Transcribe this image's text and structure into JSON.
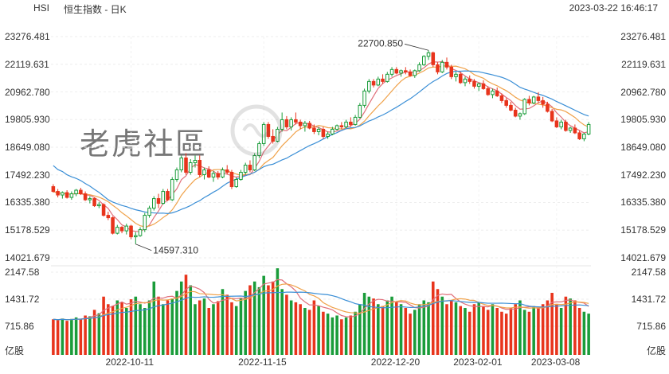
{
  "header": {
    "symbol": "HSI",
    "title": "恒生指数 - 日K",
    "datetime": "2023-03-22 16:46:17"
  },
  "watermark": "老虎社區",
  "colors": {
    "up": "#1a9c3a",
    "down": "#e8341c",
    "ma5": "#e06f7a",
    "ma10": "#f0a24a",
    "ma20": "#3b8fd6"
  },
  "chart_data": {
    "type": "candlestick",
    "price_axis": {
      "ticks": [
        23276.481,
        22119.631,
        20962.78,
        19805.93,
        18649.08,
        17492.23,
        16335.38,
        15178.529,
        14021.679
      ],
      "labels": [
        "23276.481",
        "22119.631",
        "20962.780",
        "19805.930",
        "18649.080",
        "17492.230",
        "16335.380",
        "15178.529",
        "14021.679"
      ]
    },
    "volume_axis": {
      "ticks": [
        2147.58,
        1431.72,
        715.86
      ],
      "labels": [
        "2147.58",
        "1431.72",
        "715.86"
      ],
      "unit": "亿股"
    },
    "x_labels": [
      "2022-10-11",
      "2022-11-15",
      "2022-12-20",
      "2023-02-01",
      "2023-03-08"
    ],
    "annotations": [
      {
        "label": "22700.850"
      },
      {
        "label": "14597.310"
      }
    ],
    "candles": [
      [
        17000,
        17100,
        16750,
        16800
      ],
      [
        16800,
        16900,
        16550,
        16650
      ],
      [
        16650,
        16800,
        16500,
        16750
      ],
      [
        16750,
        16850,
        16500,
        16550
      ],
      [
        16550,
        16800,
        16450,
        16700
      ],
      [
        16700,
        16900,
        16600,
        16850
      ],
      [
        16850,
        16950,
        16650,
        16700
      ],
      [
        16700,
        16800,
        16400,
        16450
      ],
      [
        16450,
        16600,
        16300,
        16500
      ],
      [
        16500,
        16550,
        16150,
        16200
      ],
      [
        16200,
        16350,
        16100,
        16250
      ],
      [
        16250,
        16300,
        15750,
        15800
      ],
      [
        15800,
        15950,
        15600,
        15700
      ],
      [
        15700,
        15750,
        15000,
        15050
      ],
      [
        15050,
        15400,
        15000,
        15300
      ],
      [
        15300,
        15350,
        15050,
        15150
      ],
      [
        15150,
        15450,
        15000,
        15350
      ],
      [
        15350,
        15400,
        14800,
        14900
      ],
      [
        14900,
        15100,
        14597,
        14950
      ],
      [
        14950,
        15300,
        14900,
        15200
      ],
      [
        15200,
        15900,
        15100,
        15800
      ],
      [
        15800,
        16200,
        15700,
        16100
      ],
      [
        16100,
        16600,
        16000,
        16500
      ],
      [
        16500,
        16700,
        16100,
        16300
      ],
      [
        16300,
        16900,
        16250,
        16800
      ],
      [
        16800,
        16900,
        16400,
        16450
      ],
      [
        16450,
        17400,
        16400,
        17300
      ],
      [
        17300,
        17800,
        17200,
        17700
      ],
      [
        17700,
        18300,
        17600,
        18200
      ],
      [
        18200,
        18400,
        17500,
        17600
      ],
      [
        17600,
        18150,
        17500,
        18000
      ],
      [
        18000,
        18300,
        17800,
        18100
      ],
      [
        18100,
        18300,
        17400,
        17500
      ],
      [
        17500,
        17800,
        17300,
        17700
      ],
      [
        17700,
        17850,
        17350,
        17400
      ],
      [
        17400,
        17650,
        17200,
        17550
      ],
      [
        17550,
        17650,
        17300,
        17400
      ],
      [
        17400,
        17800,
        17350,
        17700
      ],
      [
        17700,
        17900,
        17500,
        17600
      ],
      [
        17600,
        17700,
        16900,
        17000
      ],
      [
        17000,
        17400,
        16950,
        17300
      ],
      [
        17300,
        17700,
        17250,
        17600
      ],
      [
        17600,
        18000,
        17500,
        17900
      ],
      [
        17900,
        18100,
        17600,
        17700
      ],
      [
        17700,
        18400,
        17650,
        18300
      ],
      [
        18300,
        18900,
        18200,
        18800
      ],
      [
        18800,
        19700,
        18700,
        19600
      ],
      [
        19600,
        19700,
        19000,
        19100
      ],
      [
        19100,
        19400,
        18800,
        18900
      ],
      [
        18900,
        19500,
        18850,
        19400
      ],
      [
        19400,
        20100,
        19300,
        19800
      ],
      [
        19800,
        19950,
        19400,
        19500
      ],
      [
        19500,
        19900,
        19350,
        19800
      ],
      [
        19800,
        20100,
        19600,
        19700
      ],
      [
        19700,
        19800,
        19400,
        19550
      ],
      [
        19550,
        19750,
        19300,
        19650
      ],
      [
        19650,
        19750,
        19400,
        19450
      ],
      [
        19450,
        19600,
        19200,
        19300
      ],
      [
        19300,
        19500,
        19150,
        19400
      ],
      [
        19400,
        19500,
        19000,
        19100
      ],
      [
        19100,
        19300,
        19000,
        19200
      ],
      [
        19200,
        19500,
        19150,
        19400
      ],
      [
        19400,
        19600,
        19350,
        19550
      ],
      [
        19550,
        19700,
        19400,
        19500
      ],
      [
        19500,
        19800,
        19450,
        19700
      ],
      [
        19700,
        19900,
        19500,
        19600
      ],
      [
        19600,
        20000,
        19550,
        19900
      ],
      [
        19900,
        20500,
        19850,
        20400
      ],
      [
        20400,
        21100,
        20300,
        21000
      ],
      [
        21000,
        21500,
        20900,
        21400
      ],
      [
        21400,
        21500,
        21150,
        21250
      ],
      [
        21250,
        21600,
        21200,
        21500
      ],
      [
        21500,
        21700,
        21300,
        21400
      ],
      [
        21400,
        21800,
        21350,
        21700
      ],
      [
        21700,
        22000,
        21600,
        21900
      ],
      [
        21900,
        22000,
        21700,
        21750
      ],
      [
        21750,
        21900,
        21600,
        21850
      ],
      [
        21850,
        22000,
        21700,
        21800
      ],
      [
        21800,
        21900,
        21600,
        21650
      ],
      [
        21650,
        21900,
        21550,
        21850
      ],
      [
        21850,
        22200,
        21800,
        22100
      ],
      [
        22100,
        22500,
        22050,
        22450
      ],
      [
        22450,
        22701,
        22300,
        22600
      ],
      [
        22600,
        22650,
        22000,
        22100
      ],
      [
        22100,
        22200,
        21700,
        21800
      ],
      [
        21800,
        22300,
        21750,
        22200
      ],
      [
        22200,
        22400,
        21900,
        22000
      ],
      [
        22000,
        22100,
        21500,
        21600
      ],
      [
        21600,
        21800,
        21400,
        21700
      ],
      [
        21700,
        21800,
        21300,
        21350
      ],
      [
        21350,
        21600,
        21200,
        21500
      ],
      [
        21500,
        21650,
        21300,
        21400
      ],
      [
        21400,
        21500,
        21100,
        21200
      ],
      [
        21200,
        21350,
        21000,
        21300
      ],
      [
        21300,
        21450,
        21050,
        21100
      ],
      [
        21100,
        21200,
        20800,
        20850
      ],
      [
        20850,
        21100,
        20700,
        21000
      ],
      [
        21000,
        21150,
        20750,
        20800
      ],
      [
        20800,
        20900,
        20500,
        20600
      ],
      [
        20600,
        20700,
        20300,
        20400
      ],
      [
        20400,
        20550,
        20150,
        20200
      ],
      [
        20200,
        20300,
        19900,
        19950
      ],
      [
        19950,
        20100,
        19800,
        20050
      ],
      [
        20050,
        20700,
        20000,
        20650
      ],
      [
        20650,
        20800,
        20400,
        20500
      ],
      [
        20500,
        20800,
        20450,
        20750
      ],
      [
        20750,
        20950,
        20500,
        20600
      ],
      [
        20600,
        20750,
        20300,
        20450
      ],
      [
        20450,
        20550,
        20100,
        20150
      ],
      [
        20150,
        20250,
        19700,
        19750
      ],
      [
        19750,
        19900,
        19450,
        19500
      ],
      [
        19500,
        19800,
        19400,
        19700
      ],
      [
        19700,
        19800,
        19300,
        19350
      ],
      [
        19350,
        19500,
        19250,
        19450
      ],
      [
        19450,
        19600,
        19200,
        19250
      ],
      [
        19250,
        19350,
        18950,
        19000
      ],
      [
        19000,
        19250,
        18900,
        19200
      ],
      [
        19200,
        19700,
        19150,
        19600
      ]
    ],
    "volumes": [
      900,
      880,
      920,
      860,
      910,
      950,
      900,
      1000,
      980,
      1150,
      1060,
      1500,
      1300,
      1250,
      1400,
      1350,
      1200,
      1430,
      1500,
      1300,
      1200,
      1400,
      1900,
      1500,
      1300,
      1400,
      1450,
      1650,
      1900,
      2080,
      1800,
      1300,
      1400,
      1450,
      1200,
      1300,
      1380,
      1700,
      1550,
      1350,
      1250,
      1450,
      1650,
      1800,
      1900,
      1750,
      2050,
      1800,
      1900,
      2250,
      1700,
      1550,
      1400,
      1350,
      1300,
      1200,
      1150,
      1400,
      1250,
      1100,
      1050,
      950,
      1000,
      900,
      950,
      1000,
      1100,
      1300,
      1600,
      1500,
      1450,
      1300,
      1250,
      1400,
      1500,
      1350,
      1300,
      1200,
      1050,
      1150,
      1300,
      1400,
      1350,
      1900,
      1700,
      1500,
      1300,
      1400,
      1350,
      1250,
      1200,
      1100,
      1300,
      1350,
      1250,
      1150,
      1300,
      1200,
      1100,
      1050,
      1200,
      1300,
      1400,
      1150,
      1100,
      1250,
      1200,
      1300,
      1400,
      1600,
      1300,
      1200,
      1500,
      1450,
      1400,
      1200,
      1100,
      1050
    ]
  }
}
